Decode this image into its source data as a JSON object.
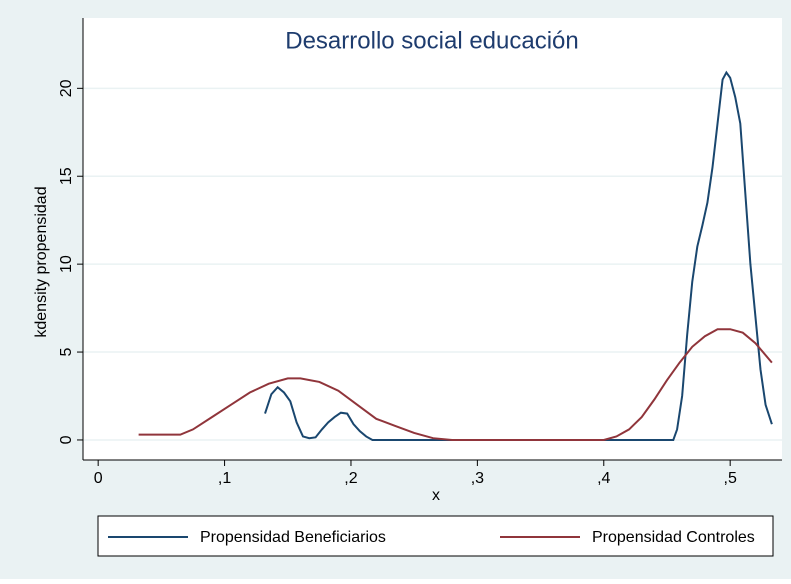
{
  "chart_data": {
    "type": "line",
    "title": "Desarrollo social educación",
    "xlabel": "x",
    "ylabel": "kdensity propensidad",
    "xlim": [
      -0.012,
      0.541
    ],
    "ylim": [
      -1.14,
      24
    ],
    "xticks": [
      0,
      {
        "value": 0.1,
        "label": ",1"
      },
      {
        "value": 0.2,
        "label": ",2"
      },
      {
        "value": 0.3,
        "label": ",3"
      },
      {
        "value": 0.4,
        "label": ",4"
      },
      {
        "value": 0.5,
        "label": ",5"
      }
    ],
    "yticks": [
      0,
      5,
      10,
      15,
      20
    ],
    "grid": true,
    "legend": "bottom",
    "series": [
      {
        "name": "Propensidad Beneficiarios",
        "color": "#1a476f",
        "x": [
          0.132,
          0.137,
          0.142,
          0.147,
          0.152,
          0.157,
          0.162,
          0.167,
          0.172,
          0.177,
          0.182,
          0.187,
          0.192,
          0.197,
          0.202,
          0.207,
          0.212,
          0.217,
          0.3,
          0.4,
          0.455,
          0.458,
          0.462,
          0.466,
          0.47,
          0.474,
          0.478,
          0.482,
          0.486,
          0.49,
          0.494,
          0.497,
          0.5,
          0.504,
          0.508,
          0.512,
          0.516,
          0.52,
          0.524,
          0.528,
          0.533
        ],
        "values": [
          1.5,
          2.6,
          3.0,
          2.7,
          2.2,
          1.0,
          0.2,
          0.1,
          0.15,
          0.6,
          1.0,
          1.3,
          1.55,
          1.5,
          0.9,
          0.5,
          0.2,
          0,
          0,
          0,
          0,
          0.6,
          2.5,
          6,
          9,
          11,
          12.2,
          13.5,
          15.5,
          18,
          20.5,
          20.9,
          20.6,
          19.5,
          18,
          14,
          10,
          7,
          4,
          2,
          0.9
        ]
      },
      {
        "name": "Propensidad Controles",
        "color": "#90353b",
        "x": [
          0.032,
          0.05,
          0.065,
          0.075,
          0.09,
          0.105,
          0.12,
          0.135,
          0.15,
          0.16,
          0.175,
          0.19,
          0.205,
          0.22,
          0.235,
          0.25,
          0.265,
          0.28,
          0.3,
          0.35,
          0.4,
          0.41,
          0.42,
          0.43,
          0.44,
          0.45,
          0.46,
          0.47,
          0.48,
          0.49,
          0.5,
          0.51,
          0.52,
          0.533
        ],
        "values": [
          0.3,
          0.3,
          0.3,
          0.6,
          1.3,
          2,
          2.7,
          3.2,
          3.5,
          3.5,
          3.3,
          2.8,
          2.0,
          1.2,
          0.8,
          0.4,
          0.1,
          0,
          0,
          0,
          0,
          0.2,
          0.6,
          1.3,
          2.3,
          3.4,
          4.4,
          5.3,
          5.9,
          6.3,
          6.3,
          6.1,
          5.5,
          4.4
        ]
      }
    ]
  }
}
